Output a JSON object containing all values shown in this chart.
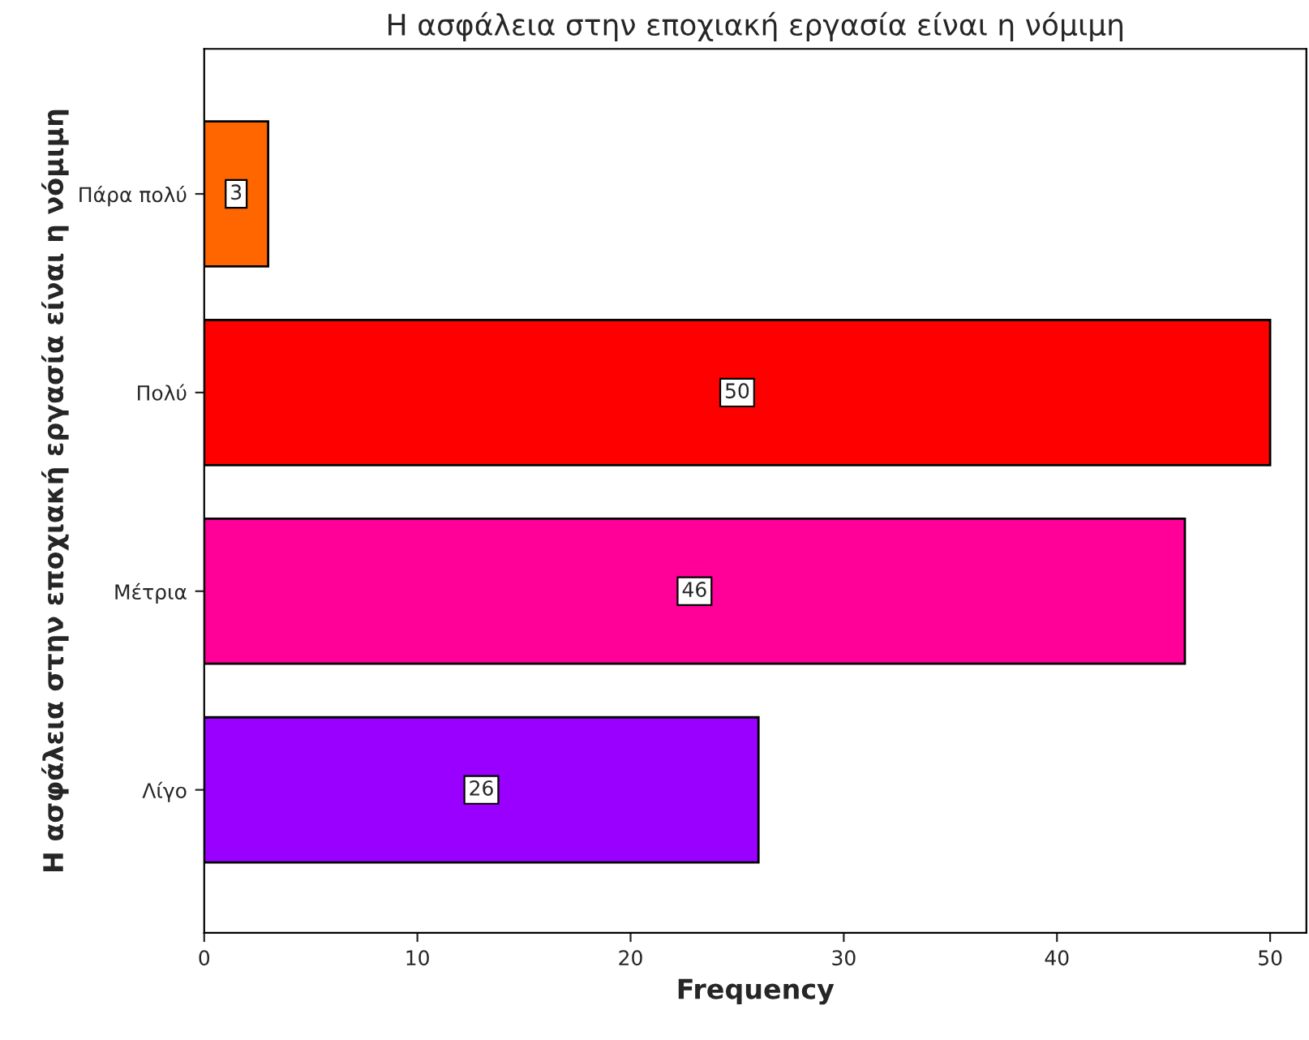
{
  "chart_data": {
    "type": "bar",
    "orientation": "horizontal",
    "title": "Η ασφάλεια στην εποχιακή εργασία είναι η νόμιμη",
    "xlabel": "Frequency",
    "ylabel": "Η ασφάλεια στην εποχιακή εργασία είναι η νόμιμη",
    "categories": [
      "Πάρα πολύ",
      "Πολύ",
      "Μέτρια",
      "Λίγο"
    ],
    "values": [
      3,
      50,
      46,
      26
    ],
    "colors": [
      "#ff6600",
      "#ff0000",
      "#ff0099",
      "#9900ff"
    ],
    "xlim": [
      0,
      51.7
    ],
    "xticks": [
      0,
      10,
      20,
      30,
      40,
      50
    ],
    "grid": false,
    "data_labels": true
  }
}
